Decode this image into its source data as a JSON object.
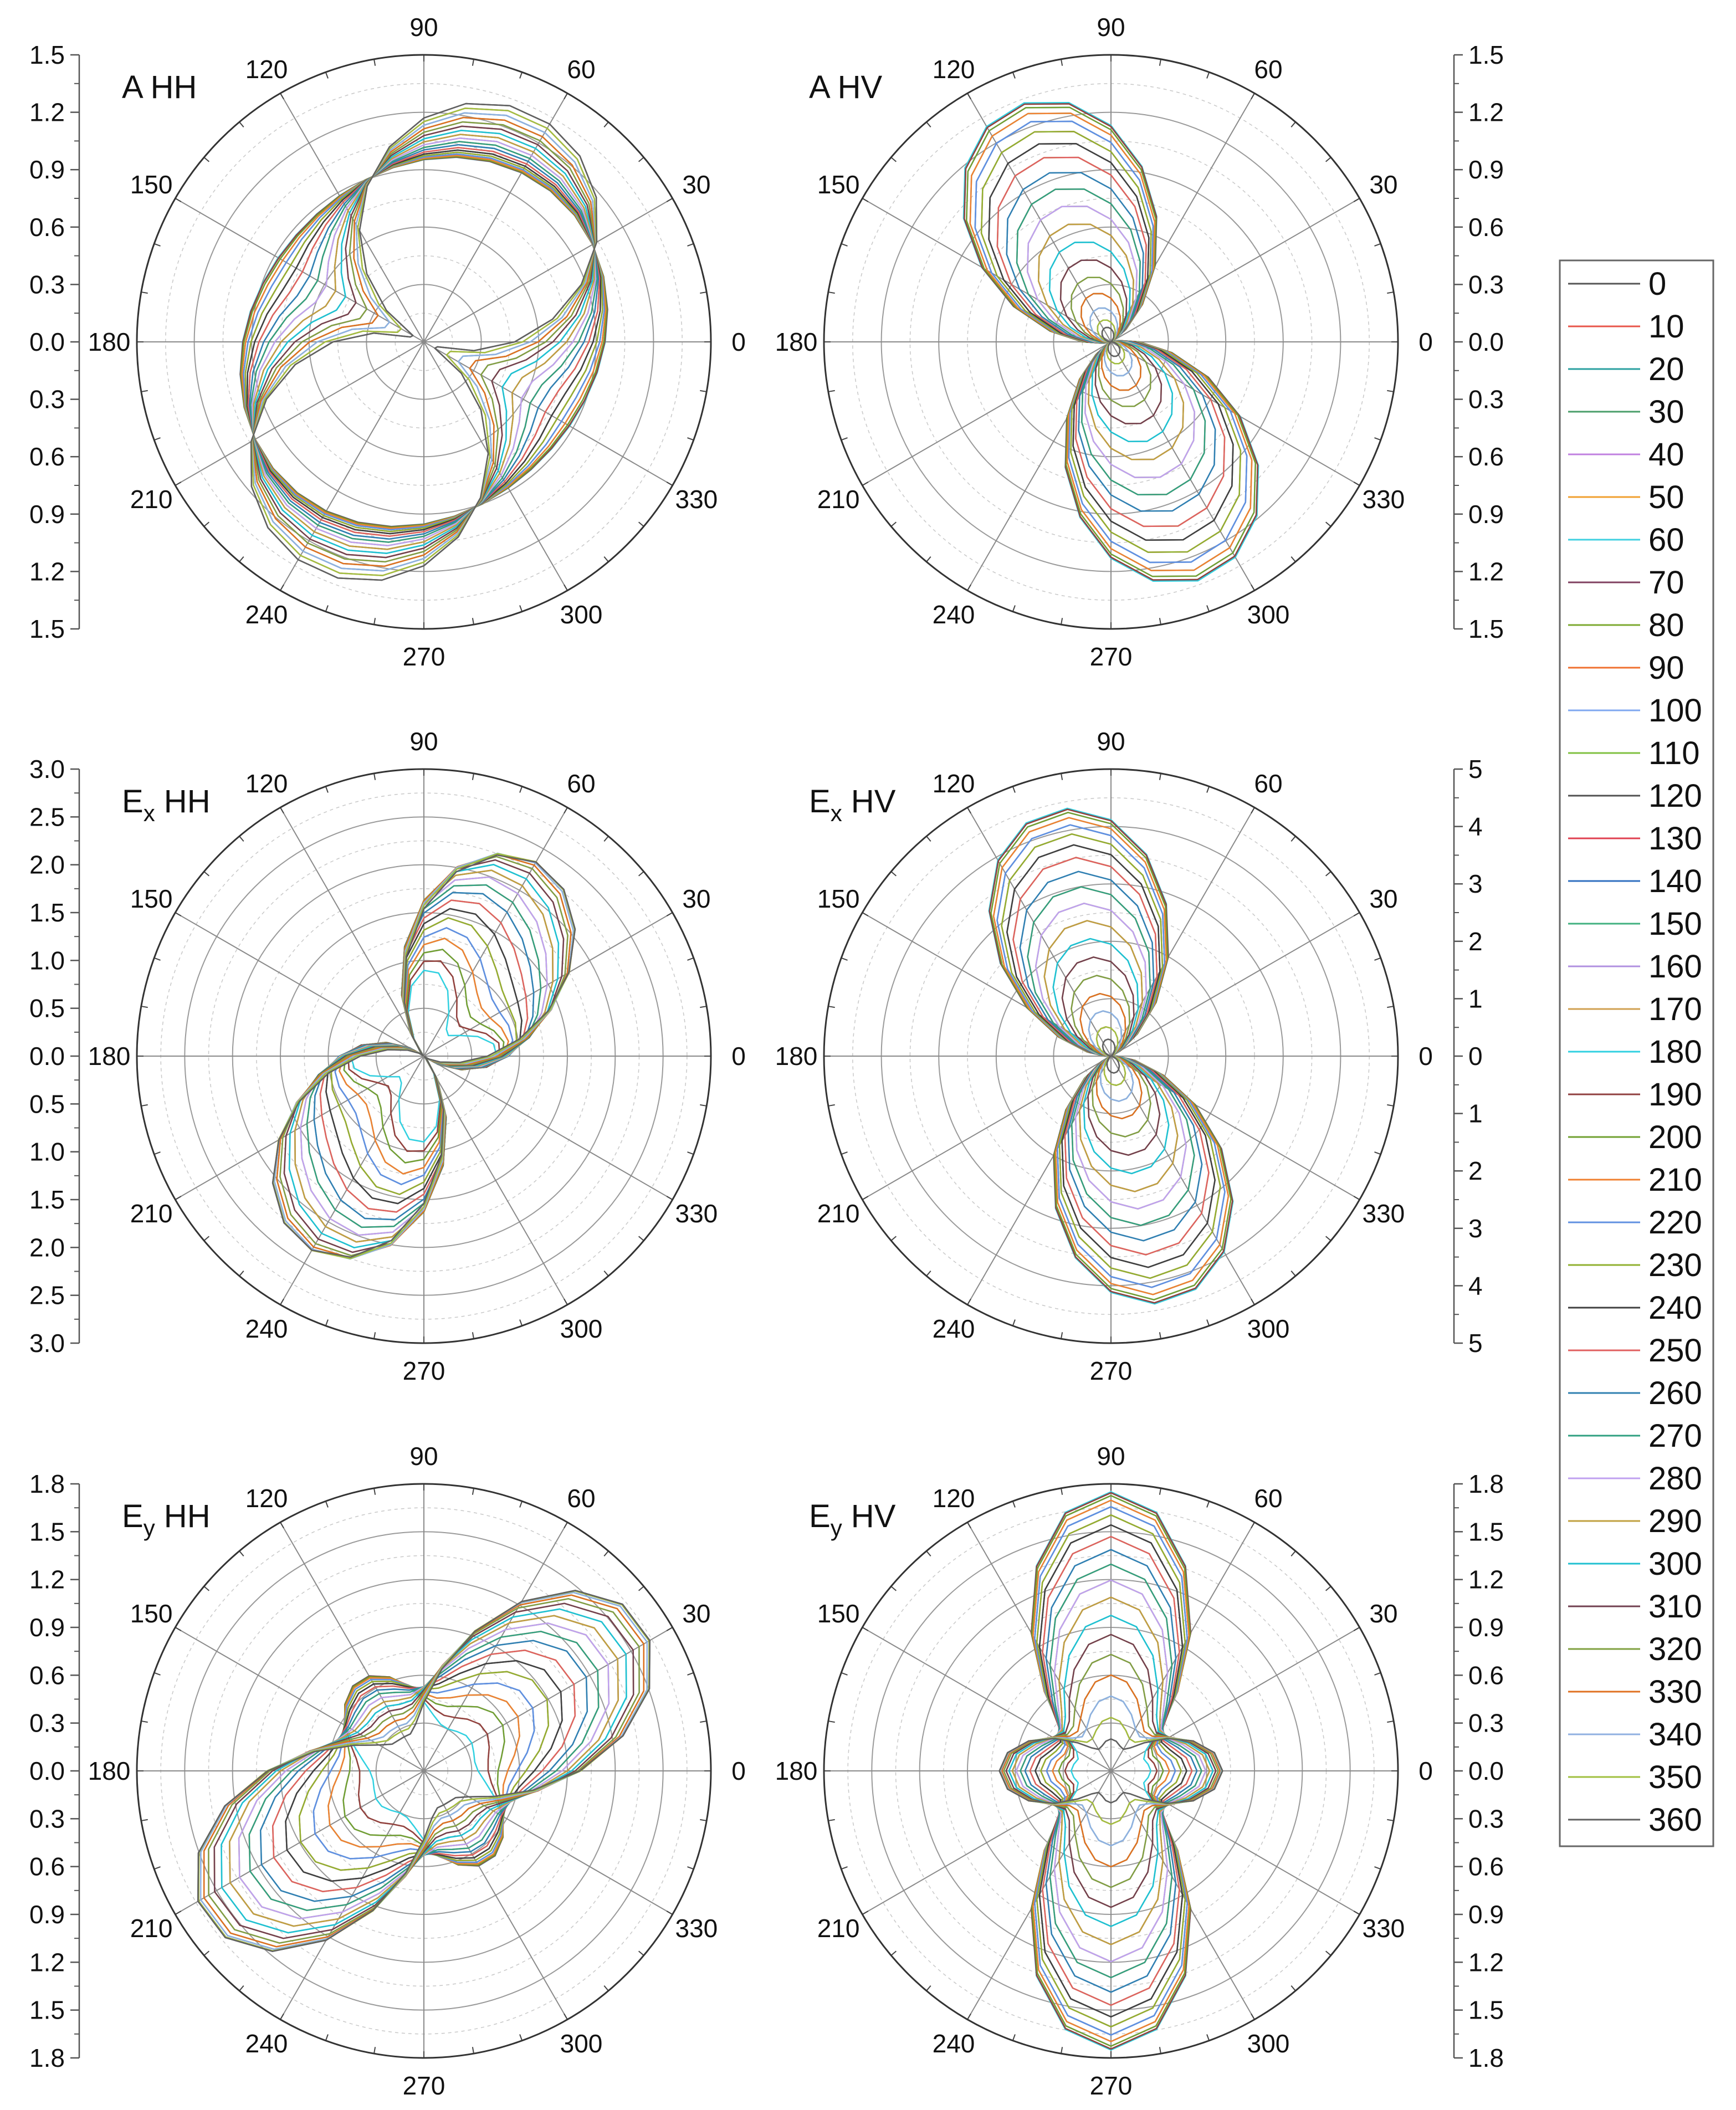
{
  "figure": {
    "legend_title": "",
    "legend_entries": [
      "0",
      "10",
      "20",
      "30",
      "40",
      "50",
      "60",
      "70",
      "80",
      "90",
      "100",
      "110",
      "120",
      "130",
      "140",
      "150",
      "160",
      "170",
      "180",
      "190",
      "200",
      "210",
      "220",
      "230",
      "240",
      "250",
      "260",
      "270",
      "280",
      "290",
      "300",
      "310",
      "320",
      "330",
      "340",
      "350",
      "360"
    ],
    "legend_colors": [
      "#555555",
      "#e8554a",
      "#2aa0a0",
      "#4a9e6a",
      "#c080e0",
      "#f0a030",
      "#40d0e0",
      "#804060",
      "#7caa30",
      "#f07030",
      "#80a8f0",
      "#80c040",
      "#505050",
      "#e04050",
      "#3070c0",
      "#40b080",
      "#b090e0",
      "#d0a050",
      "#30d0e0",
      "#904040",
      "#70a030",
      "#f08030",
      "#6090e0",
      "#90b030",
      "#404040",
      "#e06060",
      "#3080b0",
      "#30a080",
      "#c0a0f0",
      "#c0a040",
      "#20c0d0",
      "#704050",
      "#80a040",
      "#e07020",
      "#90b0e0",
      "#a0c040",
      "#606060"
    ],
    "angle_labels": [
      "0",
      "30",
      "60",
      "90",
      "120",
      "150",
      "180",
      "210",
      "240",
      "270",
      "300",
      "330"
    ]
  },
  "chart_data": [
    {
      "id": "A_HH",
      "type": "polar-line",
      "title": "A HH",
      "title_main": "A",
      "title_sub": "",
      "title_suffix": " HH",
      "rmax": 1.5,
      "rlabels": [
        "1.5",
        "1.2",
        "0.9",
        "0.6",
        "0.3",
        "0.0",
        "0.3",
        "0.6",
        "0.9",
        "1.2",
        "1.5"
      ],
      "rlabel_values": [
        1.5,
        1.2,
        0.9,
        0.6,
        0.3,
        0.0,
        0.3,
        0.6,
        0.9,
        1.2,
        1.5
      ],
      "axis_side": "left",
      "pattern": "A_HH",
      "series_count": 37
    },
    {
      "id": "A_HV",
      "type": "polar-line",
      "title": "A HV",
      "title_main": "A",
      "title_sub": "",
      "title_suffix": " HV",
      "rmax": 1.5,
      "rlabels": [
        "1.5",
        "1.2",
        "0.9",
        "0.6",
        "0.3",
        "0.0",
        "0.3",
        "0.6",
        "0.9",
        "1.2",
        "1.5"
      ],
      "rlabel_values": [
        1.5,
        1.2,
        0.9,
        0.6,
        0.3,
        0.0,
        0.3,
        0.6,
        0.9,
        1.2,
        1.5
      ],
      "axis_side": "right",
      "pattern": "A_HV",
      "series_count": 37
    },
    {
      "id": "Ex_HH",
      "type": "polar-line",
      "title": "Ex HH",
      "title_main": "E",
      "title_sub": "x",
      "title_suffix": " HH",
      "rmax": 3.0,
      "rlabels": [
        "3.0",
        "2.5",
        "2.0",
        "1.5",
        "1.0",
        "0.5",
        "0.0",
        "0.5",
        "1.0",
        "1.5",
        "2.0",
        "2.5",
        "3.0"
      ],
      "rlabel_values": [
        3.0,
        2.5,
        2.0,
        1.5,
        1.0,
        0.5,
        0.0,
        0.5,
        1.0,
        1.5,
        2.0,
        2.5,
        3.0
      ],
      "axis_side": "left",
      "pattern": "Ex_HH",
      "series_count": 37
    },
    {
      "id": "Ex_HV",
      "type": "polar-line",
      "title": "Ex HV",
      "title_main": "E",
      "title_sub": "x",
      "title_suffix": " HV",
      "rmax": 5,
      "rlabels": [
        "5",
        "4",
        "3",
        "2",
        "1",
        "0",
        "1",
        "2",
        "3",
        "4",
        "5"
      ],
      "rlabel_values": [
        5,
        4,
        3,
        2,
        1,
        0,
        1,
        2,
        3,
        4,
        5
      ],
      "axis_side": "right",
      "pattern": "Ex_HV",
      "series_count": 37
    },
    {
      "id": "Ey_HH",
      "type": "polar-line",
      "title": "Ey HH",
      "title_main": "E",
      "title_sub": "y",
      "title_suffix": " HH",
      "rmax": 1.8,
      "rlabels": [
        "1.8",
        "1.5",
        "1.2",
        "0.9",
        "0.6",
        "0.3",
        "0.0",
        "0.3",
        "0.6",
        "0.9",
        "1.2",
        "1.5",
        "1.8"
      ],
      "rlabel_values": [
        1.8,
        1.5,
        1.2,
        0.9,
        0.6,
        0.3,
        0.0,
        0.3,
        0.6,
        0.9,
        1.2,
        1.5,
        1.8
      ],
      "axis_side": "left",
      "pattern": "Ey_HH",
      "series_count": 37
    },
    {
      "id": "Ey_HV",
      "type": "polar-line",
      "title": "Ey HV",
      "title_main": "E",
      "title_sub": "y",
      "title_suffix": " HV",
      "rmax": 1.8,
      "rlabels": [
        "1.8",
        "1.5",
        "1.2",
        "0.9",
        "0.6",
        "0.3",
        "0.0",
        "0.3",
        "0.6",
        "0.9",
        "1.2",
        "1.5",
        "1.8"
      ],
      "rlabel_values": [
        1.8,
        1.5,
        1.2,
        0.9,
        0.6,
        0.3,
        0.0,
        0.3,
        0.6,
        0.9,
        1.2,
        1.5,
        1.8
      ],
      "axis_side": "right",
      "pattern": "Ey_HV",
      "series_count": 37
    }
  ]
}
